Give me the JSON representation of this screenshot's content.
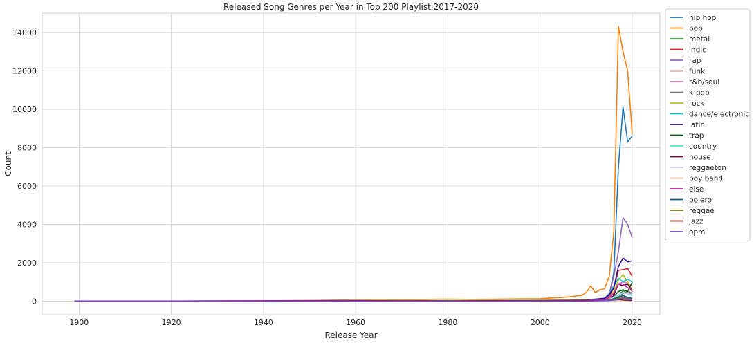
{
  "chart_data": {
    "type": "line",
    "title": "Released Song Genres per Year in Top 200 Playlist 2017-2020",
    "xlabel": "Release Year",
    "ylabel": "Count",
    "xlim": [
      1892,
      2026
    ],
    "ylim": [
      -700,
      15000
    ],
    "xticks": [
      1900,
      1920,
      1940,
      1960,
      1980,
      2000,
      2020
    ],
    "yticks": [
      0,
      2000,
      4000,
      6000,
      8000,
      10000,
      12000,
      14000
    ],
    "grid": true,
    "legend_position": "outside-right",
    "colors": {
      "hip hop": "#1f77b4",
      "pop": "#ff7f0e",
      "metal": "#2ca02c",
      "indie": "#d62728",
      "rap": "#9467bd",
      "funk": "#8c564b",
      "r&b/soul": "#e377c2",
      "k-pop": "#7f7f7f",
      "rock": "#bcbd22",
      "dance/electronic": "#17becf",
      "latin": "#2a0a8c",
      "trap": "#0e5a0e",
      "country": "#40f0c8",
      "house": "#6a0a3a",
      "reggaeton": "#c8c0f8",
      "boy band": "#e0b090",
      "else": "#b020a0",
      "bolero": "#0a5a7a",
      "reggae": "#7a7a10",
      "jazz": "#8a1a10",
      "opm": "#7a40d8"
    },
    "series": [
      {
        "name": "hip hop",
        "points": [
          [
            1899,
            0
          ],
          [
            1930,
            0
          ],
          [
            1960,
            10
          ],
          [
            1980,
            20
          ],
          [
            2000,
            30
          ],
          [
            2010,
            60
          ],
          [
            2014,
            120
          ],
          [
            2015,
            300
          ],
          [
            2016,
            1500
          ],
          [
            2017,
            7000
          ],
          [
            2018,
            10100
          ],
          [
            2019,
            8300
          ],
          [
            2020,
            8600
          ]
        ]
      },
      {
        "name": "pop",
        "points": [
          [
            1899,
            0
          ],
          [
            1920,
            0
          ],
          [
            1940,
            20
          ],
          [
            1945,
            30
          ],
          [
            1950,
            40
          ],
          [
            1955,
            60
          ],
          [
            1960,
            70
          ],
          [
            1965,
            90
          ],
          [
            1970,
            70
          ],
          [
            1975,
            90
          ],
          [
            1980,
            110
          ],
          [
            1985,
            100
          ],
          [
            1990,
            110
          ],
          [
            1995,
            120
          ],
          [
            2000,
            130
          ],
          [
            2003,
            180
          ],
          [
            2005,
            200
          ],
          [
            2007,
            250
          ],
          [
            2009,
            300
          ],
          [
            2010,
            450
          ],
          [
            2011,
            800
          ],
          [
            2012,
            450
          ],
          [
            2013,
            600
          ],
          [
            2014,
            650
          ],
          [
            2015,
            1300
          ],
          [
            2016,
            3600
          ],
          [
            2017,
            14300
          ],
          [
            2018,
            13000
          ],
          [
            2019,
            12000
          ],
          [
            2020,
            8700
          ]
        ]
      },
      {
        "name": "metal",
        "points": [
          [
            1899,
            0
          ],
          [
            1970,
            0
          ],
          [
            1990,
            10
          ],
          [
            2000,
            30
          ],
          [
            2010,
            30
          ],
          [
            2015,
            60
          ],
          [
            2017,
            300
          ],
          [
            2018,
            550
          ],
          [
            2019,
            400
          ],
          [
            2020,
            380
          ]
        ]
      },
      {
        "name": "indie",
        "points": [
          [
            1899,
            0
          ],
          [
            1980,
            0
          ],
          [
            2000,
            10
          ],
          [
            2010,
            40
          ],
          [
            2014,
            100
          ],
          [
            2015,
            250
          ],
          [
            2016,
            700
          ],
          [
            2017,
            1600
          ],
          [
            2018,
            1650
          ],
          [
            2019,
            1700
          ],
          [
            2020,
            1300
          ]
        ]
      },
      {
        "name": "rap",
        "points": [
          [
            1899,
            0
          ],
          [
            1980,
            0
          ],
          [
            2000,
            20
          ],
          [
            2010,
            50
          ],
          [
            2014,
            150
          ],
          [
            2015,
            400
          ],
          [
            2016,
            1300
          ],
          [
            2017,
            2600
          ],
          [
            2018,
            4350
          ],
          [
            2019,
            4000
          ],
          [
            2020,
            3300
          ]
        ]
      },
      {
        "name": "funk",
        "points": [
          [
            1899,
            0
          ],
          [
            1970,
            10
          ],
          [
            1990,
            10
          ],
          [
            2010,
            20
          ],
          [
            2015,
            60
          ],
          [
            2017,
            150
          ],
          [
            2018,
            300
          ],
          [
            2019,
            200
          ],
          [
            2020,
            150
          ]
        ]
      },
      {
        "name": "r&b/soul",
        "points": [
          [
            1899,
            0
          ],
          [
            1960,
            30
          ],
          [
            1965,
            40
          ],
          [
            1970,
            30
          ],
          [
            1980,
            20
          ],
          [
            1990,
            20
          ],
          [
            2000,
            30
          ],
          [
            2010,
            50
          ],
          [
            2015,
            200
          ],
          [
            2016,
            500
          ],
          [
            2017,
            900
          ],
          [
            2018,
            1000
          ],
          [
            2019,
            950
          ],
          [
            2020,
            800
          ]
        ]
      },
      {
        "name": "k-pop",
        "points": [
          [
            1899,
            0
          ],
          [
            2000,
            0
          ],
          [
            2010,
            10
          ],
          [
            2015,
            100
          ],
          [
            2017,
            250
          ],
          [
            2018,
            400
          ],
          [
            2019,
            500
          ],
          [
            2020,
            450
          ]
        ]
      },
      {
        "name": "rock",
        "points": [
          [
            1899,
            0
          ],
          [
            1950,
            20
          ],
          [
            1960,
            60
          ],
          [
            1965,
            80
          ],
          [
            1970,
            90
          ],
          [
            1975,
            100
          ],
          [
            1980,
            110
          ],
          [
            1985,
            90
          ],
          [
            1990,
            80
          ],
          [
            1995,
            100
          ],
          [
            2000,
            90
          ],
          [
            2005,
            80
          ],
          [
            2010,
            90
          ],
          [
            2015,
            150
          ],
          [
            2016,
            500
          ],
          [
            2017,
            1100
          ],
          [
            2018,
            1400
          ],
          [
            2019,
            1000
          ],
          [
            2020,
            600
          ]
        ]
      },
      {
        "name": "dance/electronic",
        "points": [
          [
            1899,
            0
          ],
          [
            1980,
            0
          ],
          [
            2000,
            20
          ],
          [
            2010,
            60
          ],
          [
            2014,
            150
          ],
          [
            2015,
            400
          ],
          [
            2016,
            800
          ],
          [
            2017,
            1200
          ],
          [
            2018,
            1000
          ],
          [
            2019,
            1150
          ],
          [
            2020,
            1000
          ]
        ]
      },
      {
        "name": "latin",
        "points": [
          [
            1899,
            0
          ],
          [
            1990,
            0
          ],
          [
            2000,
            20
          ],
          [
            2010,
            60
          ],
          [
            2014,
            150
          ],
          [
            2015,
            350
          ],
          [
            2016,
            700
          ],
          [
            2017,
            1800
          ],
          [
            2018,
            2250
          ],
          [
            2019,
            2050
          ],
          [
            2020,
            2100
          ]
        ]
      },
      {
        "name": "trap",
        "points": [
          [
            1899,
            0
          ],
          [
            2000,
            0
          ],
          [
            2010,
            20
          ],
          [
            2014,
            60
          ],
          [
            2015,
            100
          ],
          [
            2016,
            250
          ],
          [
            2017,
            500
          ],
          [
            2018,
            600
          ],
          [
            2019,
            500
          ],
          [
            2020,
            1000
          ]
        ]
      },
      {
        "name": "country",
        "points": [
          [
            1899,
            0
          ],
          [
            1970,
            10
          ],
          [
            1990,
            20
          ],
          [
            2010,
            30
          ],
          [
            2015,
            80
          ],
          [
            2017,
            300
          ],
          [
            2018,
            450
          ],
          [
            2019,
            400
          ],
          [
            2020,
            300
          ]
        ]
      },
      {
        "name": "house",
        "points": [
          [
            1899,
            0
          ],
          [
            1990,
            0
          ],
          [
            2010,
            30
          ],
          [
            2015,
            80
          ],
          [
            2016,
            300
          ],
          [
            2017,
            900
          ],
          [
            2018,
            800
          ],
          [
            2019,
            900
          ],
          [
            2020,
            500
          ]
        ]
      },
      {
        "name": "reggaeton",
        "points": [
          [
            1899,
            0
          ],
          [
            2000,
            10
          ],
          [
            2010,
            40
          ],
          [
            2015,
            100
          ],
          [
            2017,
            350
          ],
          [
            2018,
            450
          ],
          [
            2019,
            400
          ],
          [
            2020,
            350
          ]
        ]
      },
      {
        "name": "boy band",
        "points": [
          [
            1899,
            0
          ],
          [
            2000,
            0
          ],
          [
            2010,
            20
          ],
          [
            2015,
            50
          ],
          [
            2017,
            150
          ],
          [
            2018,
            200
          ],
          [
            2019,
            150
          ],
          [
            2020,
            120
          ]
        ]
      },
      {
        "name": "else",
        "points": [
          [
            1899,
            0
          ],
          [
            1940,
            20
          ],
          [
            1945,
            25
          ],
          [
            1950,
            20
          ],
          [
            1955,
            30
          ],
          [
            1960,
            30
          ],
          [
            1970,
            20
          ],
          [
            1980,
            20
          ],
          [
            1990,
            30
          ],
          [
            2000,
            30
          ],
          [
            2010,
            40
          ],
          [
            2014,
            100
          ],
          [
            2015,
            200
          ],
          [
            2016,
            400
          ],
          [
            2017,
            900
          ],
          [
            2018,
            900
          ],
          [
            2019,
            700
          ],
          [
            2020,
            600
          ]
        ]
      },
      {
        "name": "bolero",
        "points": [
          [
            1899,
            0
          ],
          [
            1970,
            0
          ],
          [
            1990,
            10
          ],
          [
            2010,
            20
          ],
          [
            2015,
            60
          ],
          [
            2017,
            200
          ],
          [
            2018,
            300
          ],
          [
            2019,
            200
          ],
          [
            2020,
            150
          ]
        ]
      },
      {
        "name": "reggae",
        "points": [
          [
            1899,
            0
          ],
          [
            1970,
            10
          ],
          [
            1990,
            10
          ],
          [
            2010,
            20
          ],
          [
            2015,
            50
          ],
          [
            2017,
            150
          ],
          [
            2018,
            200
          ],
          [
            2019,
            150
          ],
          [
            2020,
            100
          ]
        ]
      },
      {
        "name": "jazz",
        "points": [
          [
            1899,
            0
          ],
          [
            1940,
            20
          ],
          [
            1960,
            20
          ],
          [
            1980,
            20
          ],
          [
            2000,
            20
          ],
          [
            2010,
            30
          ],
          [
            2015,
            40
          ],
          [
            2017,
            80
          ],
          [
            2018,
            60
          ],
          [
            2019,
            50
          ],
          [
            2020,
            40
          ]
        ]
      },
      {
        "name": "opm",
        "points": [
          [
            1899,
            0
          ],
          [
            1990,
            0
          ],
          [
            2010,
            10
          ],
          [
            2015,
            40
          ],
          [
            2017,
            100
          ],
          [
            2018,
            150
          ],
          [
            2019,
            120
          ],
          [
            2020,
            100
          ]
        ]
      }
    ]
  }
}
